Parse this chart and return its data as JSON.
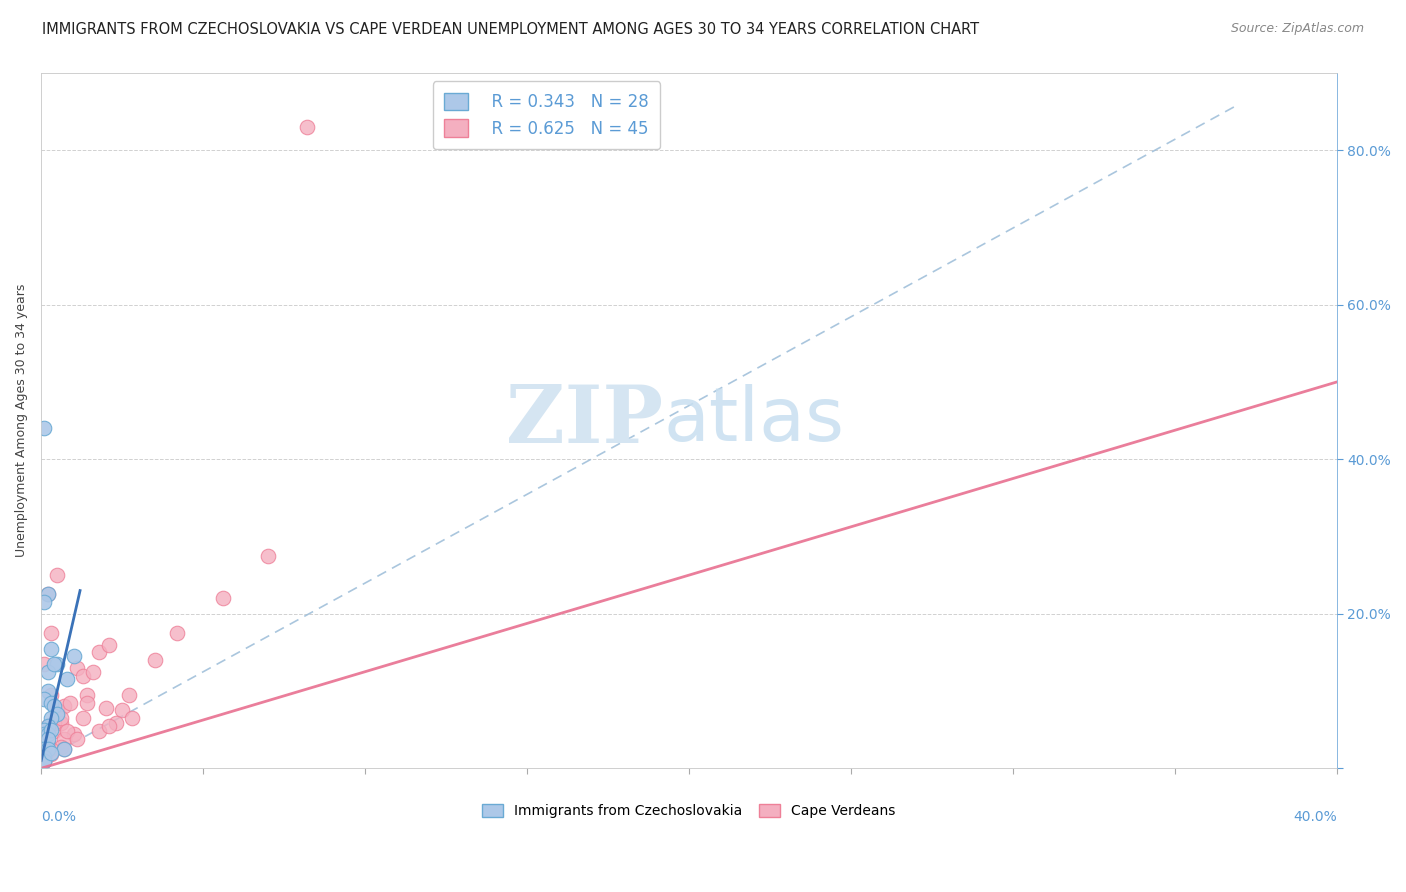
{
  "title": "IMMIGRANTS FROM CZECHOSLOVAKIA VS CAPE VERDEAN UNEMPLOYMENT AMONG AGES 30 TO 34 YEARS CORRELATION CHART",
  "source": "Source: ZipAtlas.com",
  "ylabel": "Unemployment Among Ages 30 to 34 years",
  "xlim": [
    0.0,
    0.4
  ],
  "ylim": [
    0.0,
    0.9
  ],
  "legend_blue_R": "R = 0.343",
  "legend_blue_N": "N = 28",
  "legend_pink_R": "R = 0.625",
  "legend_pink_N": "N = 45",
  "color_blue_fill": "#adc8e8",
  "color_pink_fill": "#f4afc0",
  "color_blue_edge": "#6aaad4",
  "color_pink_edge": "#ee8098",
  "color_blue_line_solid": "#3a72b8",
  "color_blue_line_dash": "#9bbcd8",
  "color_pink_line": "#e87090",
  "grid_color": "#cccccc",
  "bg_color": "#ffffff",
  "right_axis_color": "#5b9bd5",
  "title_fontsize": 10.5,
  "source_fontsize": 9,
  "watermark_zip_color": "#d0e0f0",
  "watermark_atlas_color": "#c0d8ec",
  "blue_points_x": [
    0.001,
    0.002,
    0.001,
    0.003,
    0.005,
    0.002,
    0.002,
    0.001,
    0.003,
    0.004,
    0.005,
    0.003,
    0.002,
    0.001,
    0.001,
    0.002,
    0.003,
    0.004,
    0.002,
    0.001,
    0.01,
    0.008,
    0.007,
    0.002,
    0.001,
    0.001,
    0.001,
    0.003
  ],
  "blue_points_y": [
    0.44,
    0.225,
    0.215,
    0.155,
    0.135,
    0.125,
    0.1,
    0.09,
    0.085,
    0.08,
    0.07,
    0.065,
    0.055,
    0.05,
    0.045,
    0.045,
    0.05,
    0.135,
    0.038,
    0.025,
    0.145,
    0.115,
    0.025,
    0.025,
    0.015,
    0.01,
    0.01,
    0.02
  ],
  "pink_points_x": [
    0.002,
    0.005,
    0.003,
    0.001,
    0.003,
    0.005,
    0.002,
    0.004,
    0.007,
    0.006,
    0.011,
    0.013,
    0.014,
    0.009,
    0.018,
    0.016,
    0.021,
    0.02,
    0.025,
    0.027,
    0.028,
    0.023,
    0.013,
    0.01,
    0.007,
    0.006,
    0.003,
    0.002,
    0.001,
    0.001,
    0.004,
    0.006,
    0.008,
    0.014,
    0.018,
    0.021,
    0.011,
    0.007,
    0.003,
    0.001,
    0.035,
    0.042,
    0.056,
    0.07,
    0.082
  ],
  "pink_points_y": [
    0.225,
    0.25,
    0.175,
    0.135,
    0.095,
    0.075,
    0.055,
    0.048,
    0.08,
    0.058,
    0.13,
    0.12,
    0.095,
    0.085,
    0.15,
    0.125,
    0.16,
    0.078,
    0.075,
    0.095,
    0.065,
    0.058,
    0.065,
    0.045,
    0.038,
    0.028,
    0.025,
    0.035,
    0.018,
    0.01,
    0.058,
    0.065,
    0.048,
    0.085,
    0.048,
    0.055,
    0.038,
    0.025,
    0.018,
    0.015,
    0.14,
    0.175,
    0.22,
    0.275,
    0.83
  ],
  "blue_line_solid_x0": 0.0,
  "blue_line_solid_x1": 0.012,
  "blue_line_solid_y0": 0.01,
  "blue_line_solid_y1": 0.23,
  "blue_line_dash_x0": 0.0,
  "blue_line_dash_x1": 0.37,
  "blue_line_dash_y0": 0.01,
  "blue_line_dash_y1": 0.86,
  "pink_line_x0": 0.0,
  "pink_line_x1": 0.4,
  "pink_line_y0": 0.0,
  "pink_line_y1": 0.5
}
